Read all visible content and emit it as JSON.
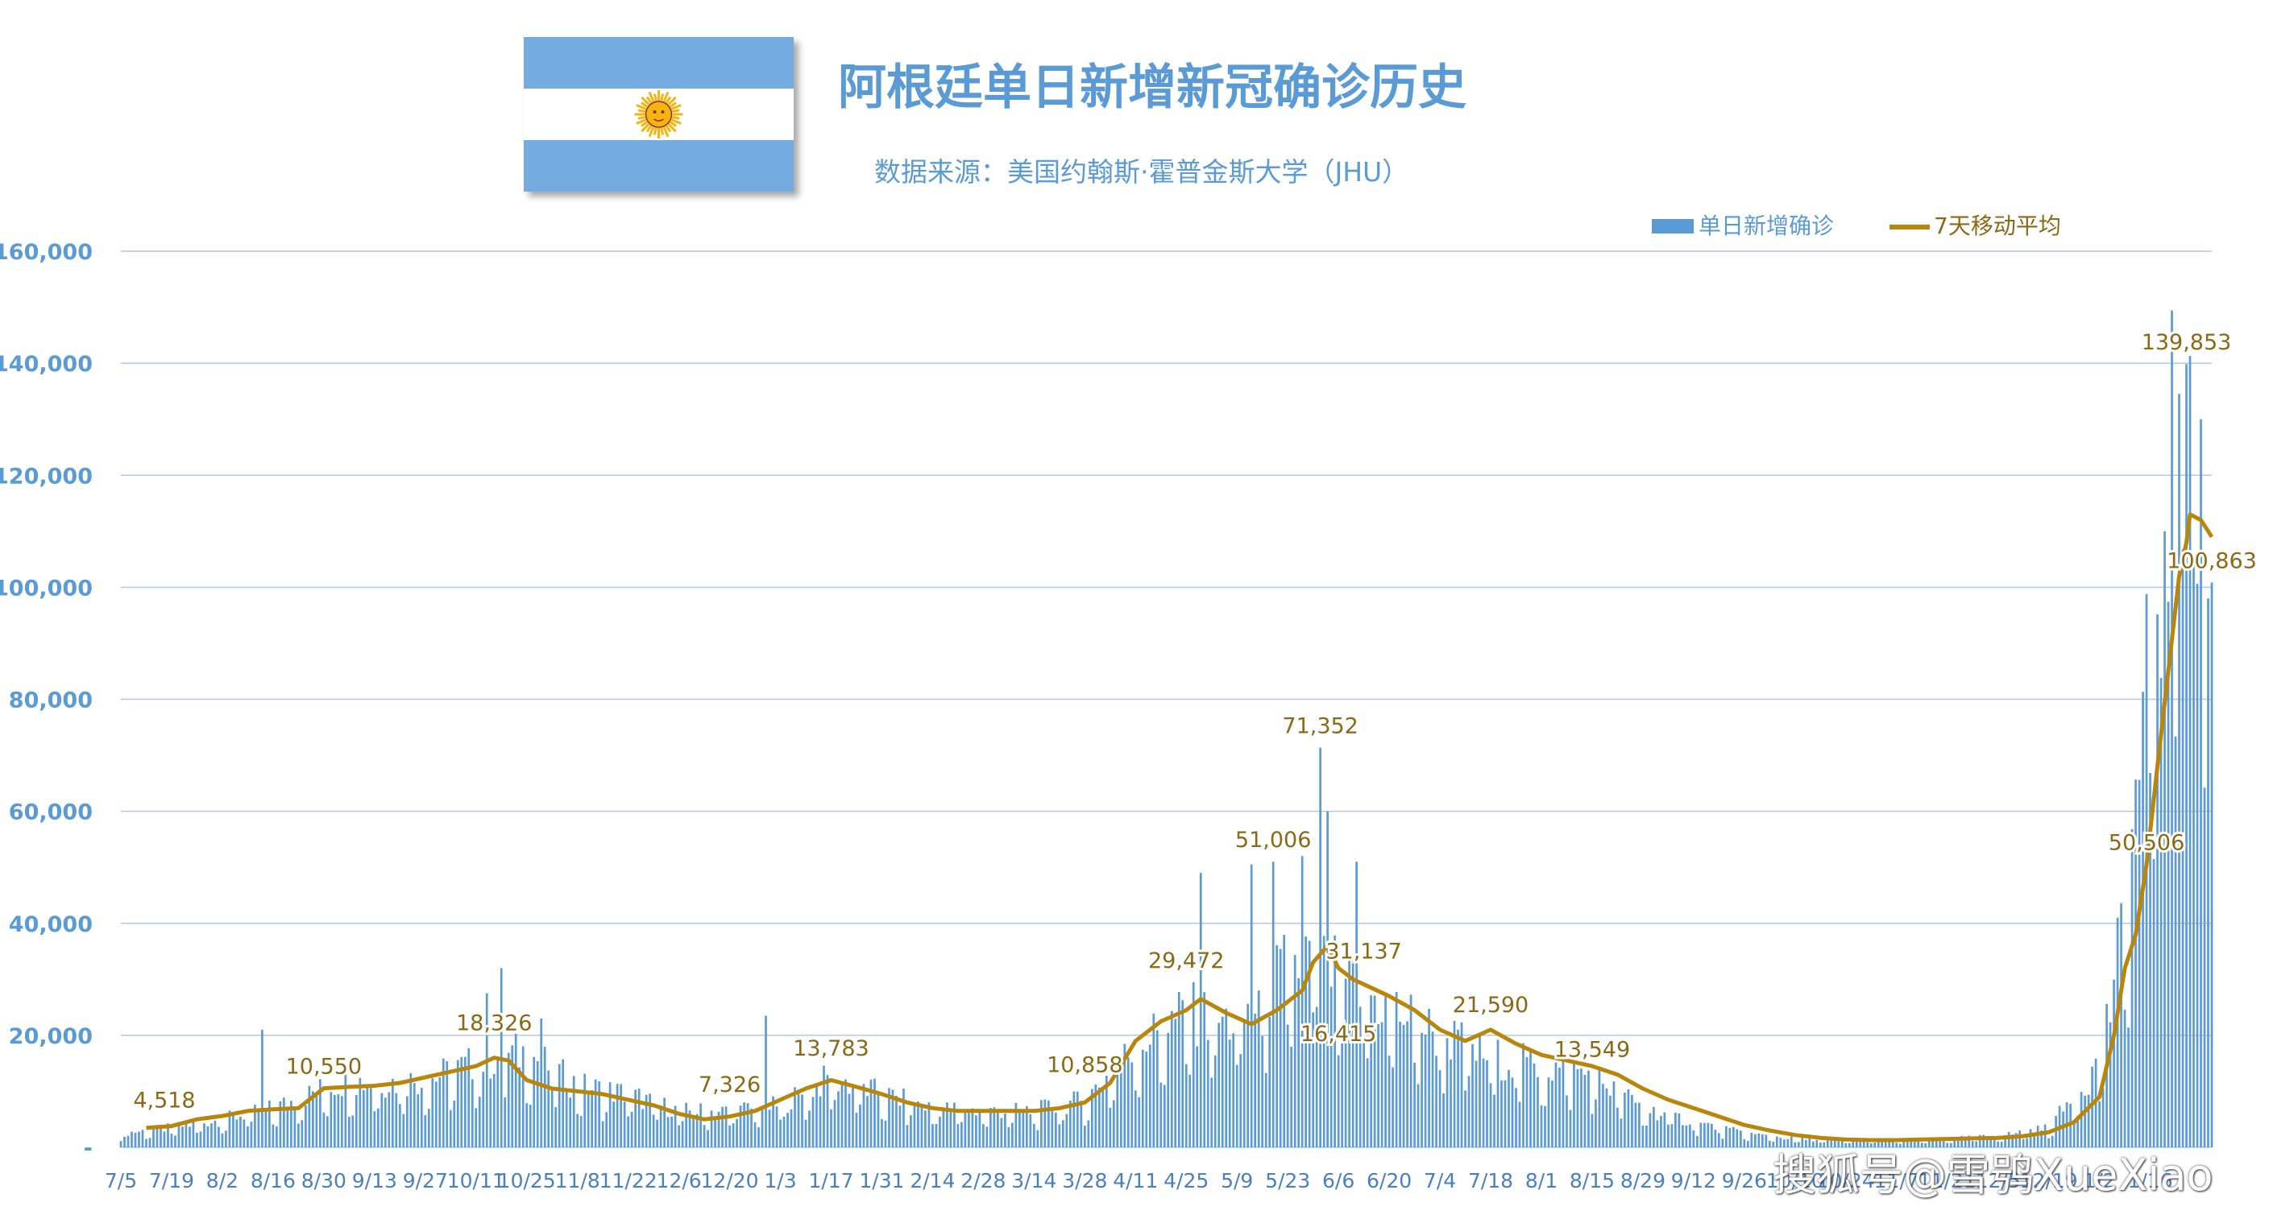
{
  "header": {
    "title": "阿根廷单日新增新冠确诊历史",
    "subtitle": "数据来源：美国约翰斯·霍普金斯大学（JHU）"
  },
  "flag": {
    "colors": {
      "blue": "#74acdf",
      "white": "#ffffff",
      "sun": "#f6b40e"
    }
  },
  "watermark": "搜狐号@雪鸮XueXiao",
  "chart_data": {
    "type": "bar",
    "combo": "bar + line",
    "grid": true,
    "legend_position": "top-right",
    "legend": [
      {
        "name": "单日新增确诊",
        "kind": "bar",
        "color": "#5b9bd5"
      },
      {
        "name": "7天移动平均",
        "kind": "line",
        "color": "#b8860b"
      }
    ],
    "ylim": [
      0,
      160000
    ],
    "yticks": [
      {
        "value": 0,
        "label": "-"
      },
      {
        "value": 20000,
        "label": "20,000"
      },
      {
        "value": 40000,
        "label": "40,000"
      },
      {
        "value": 60000,
        "label": "60,000"
      },
      {
        "value": 80000,
        "label": "80,000"
      },
      {
        "value": 100000,
        "label": "100,000"
      },
      {
        "value": 120000,
        "label": "120,000"
      },
      {
        "value": 140000,
        "label": "140,000"
      },
      {
        "value": 160000,
        "label": "160,000"
      }
    ],
    "xtick_labels": [
      "7/5",
      "7/19",
      "8/2",
      "8/16",
      "8/30",
      "9/13",
      "9/27",
      "10/11",
      "10/25",
      "11/8",
      "11/22",
      "12/6",
      "12/20",
      "1/3",
      "1/17",
      "1/31",
      "2/14",
      "2/28",
      "3/14",
      "3/28",
      "4/11",
      "4/25",
      "5/9",
      "5/23",
      "6/6",
      "6/20",
      "7/4",
      "7/18",
      "8/1",
      "8/15",
      "8/29",
      "9/12",
      "9/26",
      "10/10",
      "10/24",
      "11/7",
      "11/21",
      "12/5",
      "12/19",
      "1/2",
      "1/16"
    ],
    "days_per_tick": 14,
    "series": [
      {
        "name": "单日新增确诊",
        "kind": "bar",
        "description_points": [
          [
            0,
            2500
          ],
          [
            14,
            3500
          ],
          [
            28,
            5000
          ],
          [
            42,
            7000
          ],
          [
            56,
            10500
          ],
          [
            63,
            12000
          ],
          [
            70,
            11500
          ],
          [
            84,
            12000
          ],
          [
            98,
            15000
          ],
          [
            112,
            17000
          ],
          [
            126,
            11000
          ],
          [
            140,
            9500
          ],
          [
            154,
            6500
          ],
          [
            168,
            6500
          ],
          [
            182,
            7500
          ],
          [
            196,
            12500
          ],
          [
            210,
            9500
          ],
          [
            224,
            7000
          ],
          [
            238,
            6500
          ],
          [
            252,
            6500
          ],
          [
            266,
            8500
          ],
          [
            280,
            18000
          ],
          [
            294,
            24000
          ],
          [
            308,
            22000
          ],
          [
            322,
            32000
          ],
          [
            330,
            35000
          ],
          [
            336,
            30000
          ],
          [
            350,
            25000
          ],
          [
            364,
            20000
          ],
          [
            378,
            16000
          ],
          [
            392,
            14500
          ],
          [
            406,
            13000
          ],
          [
            420,
            7000
          ],
          [
            434,
            4500
          ],
          [
            448,
            2500
          ],
          [
            462,
            1500
          ],
          [
            476,
            1200
          ],
          [
            490,
            1200
          ],
          [
            504,
            1500
          ],
          [
            518,
            2000
          ],
          [
            532,
            3500
          ],
          [
            546,
            15000
          ],
          [
            553,
            40000
          ],
          [
            560,
            90000
          ],
          [
            567,
            125000
          ],
          [
            574,
            110000
          ],
          [
            577,
            100000
          ]
        ],
        "annotated_spikes": [
          [
            39,
            21000
          ],
          [
            101,
            27500
          ],
          [
            105,
            32000
          ],
          [
            116,
            23000
          ],
          [
            178,
            23500
          ],
          [
            298,
            49000
          ],
          [
            312,
            50500
          ],
          [
            318,
            51006
          ],
          [
            326,
            52000
          ],
          [
            331,
            71352
          ],
          [
            333,
            60000
          ],
          [
            341,
            51000
          ],
          [
            564,
            110000
          ],
          [
            568,
            134500
          ],
          [
            570,
            139853
          ],
          [
            574,
            130000
          ],
          [
            576,
            98000
          ],
          [
            577,
            100863
          ]
        ]
      },
      {
        "name": "7天移动平均",
        "kind": "line",
        "points": [
          [
            7,
            3500
          ],
          [
            14,
            3800
          ],
          [
            21,
            5000
          ],
          [
            28,
            5600
          ],
          [
            35,
            6500
          ],
          [
            42,
            6800
          ],
          [
            49,
            7000
          ],
          [
            56,
            10550
          ],
          [
            63,
            10800
          ],
          [
            70,
            11000
          ],
          [
            77,
            11500
          ],
          [
            84,
            12500
          ],
          [
            91,
            13500
          ],
          [
            98,
            14500
          ],
          [
            103,
            16000
          ],
          [
            107,
            15500
          ],
          [
            112,
            12000
          ],
          [
            119,
            10500
          ],
          [
            126,
            10000
          ],
          [
            133,
            9500
          ],
          [
            140,
            8500
          ],
          [
            147,
            7500
          ],
          [
            154,
            6000
          ],
          [
            161,
            5000
          ],
          [
            168,
            5500
          ],
          [
            175,
            6500
          ],
          [
            182,
            8500
          ],
          [
            189,
            10500
          ],
          [
            196,
            12000
          ],
          [
            203,
            10800
          ],
          [
            210,
            9500
          ],
          [
            217,
            8000
          ],
          [
            224,
            7000
          ],
          [
            231,
            6500
          ],
          [
            238,
            6500
          ],
          [
            245,
            6500
          ],
          [
            252,
            6500
          ],
          [
            259,
            7000
          ],
          [
            266,
            8000
          ],
          [
            273,
            11500
          ],
          [
            280,
            19000
          ],
          [
            287,
            22500
          ],
          [
            294,
            24500
          ],
          [
            298,
            26500
          ],
          [
            305,
            24000
          ],
          [
            312,
            22000
          ],
          [
            319,
            24500
          ],
          [
            326,
            28000
          ],
          [
            329,
            33000
          ],
          [
            333,
            36000
          ],
          [
            336,
            32000
          ],
          [
            340,
            30000
          ],
          [
            345,
            28500
          ],
          [
            350,
            27000
          ],
          [
            357,
            24500
          ],
          [
            364,
            21000
          ],
          [
            371,
            19000
          ],
          [
            378,
            21000
          ],
          [
            385,
            18500
          ],
          [
            392,
            16500
          ],
          [
            399,
            15500
          ],
          [
            406,
            14500
          ],
          [
            413,
            13000
          ],
          [
            420,
            10500
          ],
          [
            427,
            8500
          ],
          [
            434,
            7000
          ],
          [
            441,
            5500
          ],
          [
            448,
            4000
          ],
          [
            455,
            3000
          ],
          [
            462,
            2200
          ],
          [
            469,
            1700
          ],
          [
            476,
            1400
          ],
          [
            483,
            1300
          ],
          [
            490,
            1300
          ],
          [
            497,
            1400
          ],
          [
            504,
            1500
          ],
          [
            511,
            1600
          ],
          [
            518,
            1700
          ],
          [
            525,
            2000
          ],
          [
            532,
            2700
          ],
          [
            539,
            4500
          ],
          [
            546,
            9000
          ],
          [
            550,
            20000
          ],
          [
            553,
            32000
          ],
          [
            556,
            38000
          ],
          [
            559,
            50506
          ],
          [
            562,
            68000
          ],
          [
            565,
            85000
          ],
          [
            568,
            102000
          ],
          [
            570,
            108000
          ],
          [
            571,
            113000
          ],
          [
            574,
            112000
          ],
          [
            577,
            109000
          ]
        ]
      }
    ],
    "annotations": [
      {
        "text": "4,518",
        "day": 12,
        "value": 4518,
        "color": "#8b6914"
      },
      {
        "text": "10,550",
        "day": 56,
        "value": 10550,
        "color": "#8b6914"
      },
      {
        "text": "18,326",
        "day": 103,
        "value": 18326,
        "color": "#8b6914"
      },
      {
        "text": "7,326",
        "day": 168,
        "value": 7326,
        "color": "#8b6914"
      },
      {
        "text": "13,783",
        "day": 196,
        "value": 13783,
        "color": "#8b6914"
      },
      {
        "text": "10,858",
        "day": 266,
        "value": 10858,
        "color": "#8b6914"
      },
      {
        "text": "29,472",
        "day": 294,
        "value": 29472,
        "color": "#8b6914"
      },
      {
        "text": "51,006",
        "day": 318,
        "value": 51006,
        "color": "#8b6914"
      },
      {
        "text": "71,352",
        "day": 331,
        "value": 71352,
        "color": "#8b6914"
      },
      {
        "text": "31,137",
        "day": 343,
        "value": 31137,
        "color": "#8b6914"
      },
      {
        "text": "16,415",
        "day": 336,
        "value": 16415,
        "color": "#8b6914"
      },
      {
        "text": "21,590",
        "day": 378,
        "value": 21590,
        "color": "#8b6914"
      },
      {
        "text": "13,549",
        "day": 406,
        "value": 13549,
        "color": "#8b6914"
      },
      {
        "text": "50,506",
        "day": 559,
        "value": 50506,
        "color": "#8b6914"
      },
      {
        "text": "139,853",
        "day": 570,
        "value": 139853,
        "color": "#8b6914"
      },
      {
        "text": "100,863",
        "day": 577,
        "value": 100863,
        "color": "#8b6914"
      }
    ]
  }
}
